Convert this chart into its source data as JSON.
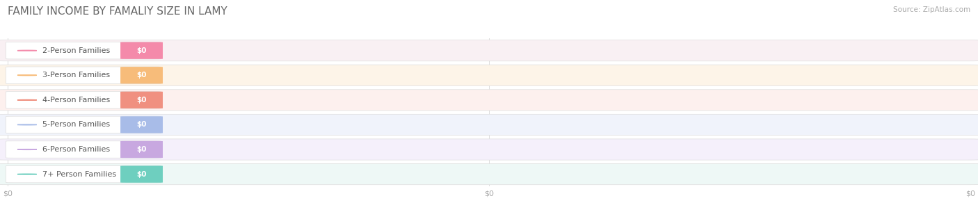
{
  "title": "FAMILY INCOME BY FAMALIY SIZE IN LAMY",
  "source": "Source: ZipAtlas.com",
  "categories": [
    "2-Person Families",
    "3-Person Families",
    "4-Person Families",
    "5-Person Families",
    "6-Person Families",
    "7+ Person Families"
  ],
  "values": [
    0,
    0,
    0,
    0,
    0,
    0
  ],
  "bar_colors": [
    "#f48aaa",
    "#f7bc7a",
    "#f09080",
    "#a8bce8",
    "#c8a8e0",
    "#6ecfbf"
  ],
  "row_colors": [
    "#f9f0f3",
    "#fdf4e8",
    "#fdf0ee",
    "#f0f3fb",
    "#f5f0fb",
    "#eef8f6"
  ],
  "label_bg": "#ffffff",
  "background": "#ffffff",
  "title_color": "#666666",
  "source_color": "#aaaaaa",
  "label_color": "#555555",
  "value_label_color": "#ffffff",
  "tick_label_color": "#aaaaaa",
  "title_fontsize": 11,
  "source_fontsize": 7.5,
  "label_fontsize": 8,
  "value_fontsize": 7.5,
  "tick_fontsize": 8
}
